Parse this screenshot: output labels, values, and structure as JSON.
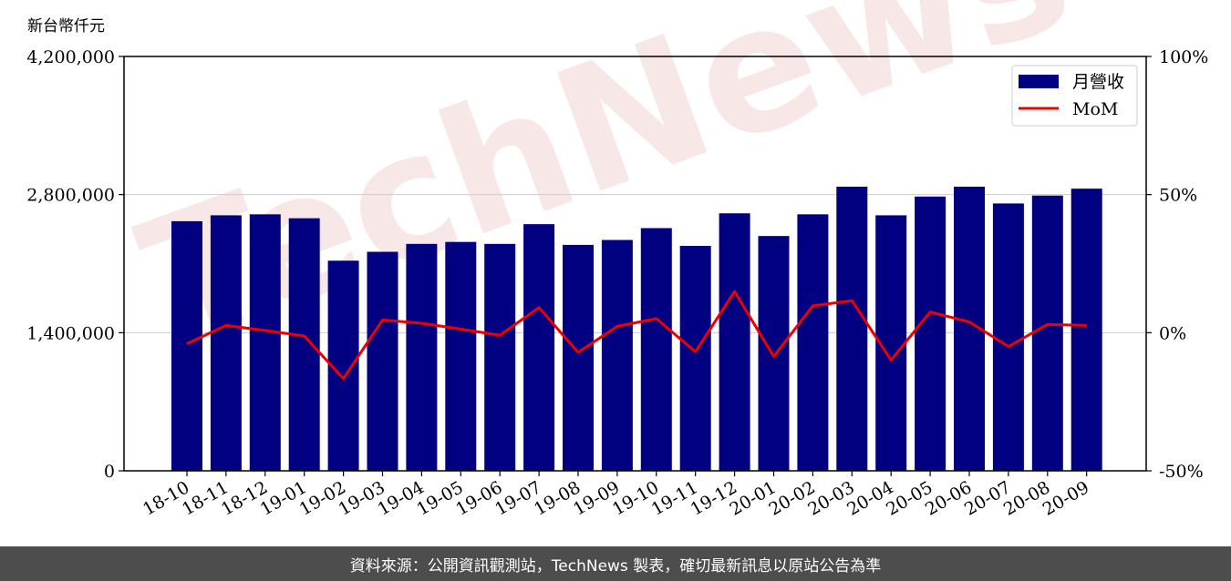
{
  "unit_label": "新台幣仟元",
  "footer_text": "資料來源：公開資訊觀測站，TechNews 製表，確切最新訊息以原站公告為準",
  "watermark_text": "TechNews",
  "chart_data": {
    "type": "bar",
    "categories": [
      "18-10",
      "18-11",
      "18-12",
      "19-01",
      "19-02",
      "19-03",
      "19-04",
      "19-05",
      "19-06",
      "19-07",
      "19-08",
      "19-09",
      "19-10",
      "19-11",
      "19-12",
      "20-01",
      "20-02",
      "20-03",
      "20-04",
      "20-05",
      "20-06",
      "20-07",
      "20-08",
      "20-09"
    ],
    "series": [
      {
        "name": "月營收",
        "type": "bar",
        "axis": "left",
        "color": "#000080",
        "values": [
          2530000,
          2590000,
          2600000,
          2560000,
          2130000,
          2220000,
          2300000,
          2320000,
          2300000,
          2500000,
          2290000,
          2340000,
          2460000,
          2280000,
          2610000,
          2380000,
          2600000,
          2880000,
          2590000,
          2780000,
          2880000,
          2710000,
          2790000,
          2860000
        ]
      },
      {
        "name": "MoM",
        "type": "line",
        "axis": "right",
        "color": "#ee0000",
        "values": [
          -4.0,
          2.6,
          0.8,
          -1.2,
          -16.6,
          4.6,
          3.4,
          1.3,
          -0.9,
          9.1,
          -7.1,
          2.3,
          5.1,
          -6.9,
          14.9,
          -8.6,
          9.7,
          11.6,
          -9.9,
          7.5,
          3.9,
          -5.0,
          3.0,
          2.6
        ]
      }
    ],
    "y_left": {
      "ylim": [
        0,
        4200000
      ],
      "ticks": [
        "0",
        "1,400,000",
        "2,800,000",
        "4,200,000"
      ]
    },
    "y_right": {
      "ylim": [
        -50,
        100
      ],
      "ticks": [
        "-50%",
        "0%",
        "50%",
        "100%"
      ]
    },
    "grid": "horizontal",
    "legend": "top-right"
  }
}
